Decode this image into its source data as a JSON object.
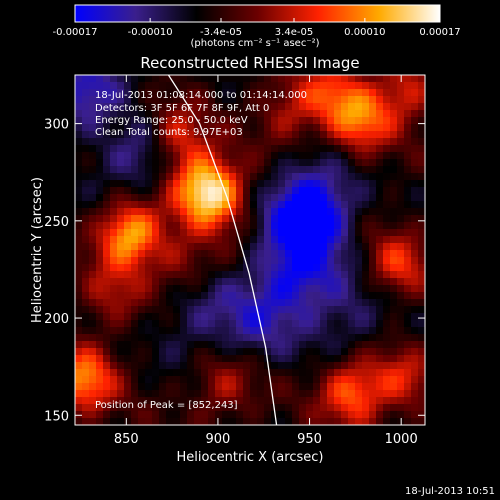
{
  "chart_data": {
    "type": "heatmap",
    "title": "Reconstructed RHESSI Image",
    "xlabel": "Heliocentric X (arcsec)",
    "ylabel": "Heliocentric Y (arcsec)",
    "xlim": [
      822,
      1013
    ],
    "ylim": [
      145,
      325
    ],
    "x_ticks": [
      850,
      900,
      950,
      1000
    ],
    "y_ticks": [
      150,
      200,
      250,
      300
    ],
    "info_lines": [
      "18-Jul-2013 01:08:14.000 to 01:14:14.000",
      "Detectors: 3F 5F 6F 7F 8F 9F, Att 0",
      "Energy Range: 25.0 - 50.0 keV",
      "Clean     Total counts: 9.97E+03"
    ],
    "peak_label": "Position of Peak = [852,243]",
    "peak_position": [
      852,
      243
    ],
    "colorbar": {
      "range": [
        -0.00017,
        0.00017
      ],
      "tick_values": [
        -0.00017,
        -0.0001,
        -3.4e-05,
        3.4e-05,
        0.0001,
        0.00017
      ],
      "tick_labels": [
        "-0.00017",
        "-0.00010",
        "-3.4e-05",
        "3.4e-05",
        "0.00010",
        "0.00017"
      ],
      "label": "(photons cm⁻² s⁻¹ asec⁻²)",
      "colormap": [
        "#0000ff",
        "#3a1f8c",
        "#000000",
        "#6b0000",
        "#ff2200",
        "#ffaa00",
        "#ffffff"
      ]
    },
    "limb_curve": [
      [
        873,
        325
      ],
      [
        890,
        300
      ],
      [
        905,
        262
      ],
      [
        917,
        223
      ],
      [
        926,
        185
      ],
      [
        932,
        145
      ]
    ],
    "bright_sources": [
      {
        "x": 852,
        "y": 243,
        "level": 1.0
      },
      {
        "x": 827,
        "y": 168,
        "level": 0.8
      },
      {
        "x": 890,
        "y": 268,
        "level": 0.75
      },
      {
        "x": 900,
        "y": 262,
        "level": 0.7
      },
      {
        "x": 973,
        "y": 162,
        "level": 0.75
      },
      {
        "x": 978,
        "y": 301,
        "level": 0.7
      },
      {
        "x": 998,
        "y": 227,
        "level": 0.55
      },
      {
        "x": 877,
        "y": 293,
        "level": 0.55
      },
      {
        "x": 903,
        "y": 165,
        "level": 0.4
      },
      {
        "x": 962,
        "y": 316,
        "level": 0.5
      },
      {
        "x": 843,
        "y": 304,
        "level": 0.5
      },
      {
        "x": 1003,
        "y": 318,
        "level": 0.5
      },
      {
        "x": 938,
        "y": 305,
        "level": 0.4
      },
      {
        "x": 842,
        "y": 212,
        "level": 0.35
      },
      {
        "x": 880,
        "y": 227,
        "level": 0.35
      },
      {
        "x": 1000,
        "y": 168,
        "level": 0.45
      }
    ],
    "dark_sources": [
      {
        "x": 950,
        "y": 256,
        "level": -0.95
      },
      {
        "x": 942,
        "y": 222,
        "level": -0.6
      },
      {
        "x": 835,
        "y": 313,
        "level": -0.7
      },
      {
        "x": 855,
        "y": 283,
        "level": -0.45
      },
      {
        "x": 920,
        "y": 198,
        "level": -0.35
      },
      {
        "x": 972,
        "y": 200,
        "level": -0.3
      },
      {
        "x": 887,
        "y": 200,
        "level": -0.3
      }
    ]
  },
  "footer": {
    "timestamp": "18-Jul-2013 10:51"
  }
}
